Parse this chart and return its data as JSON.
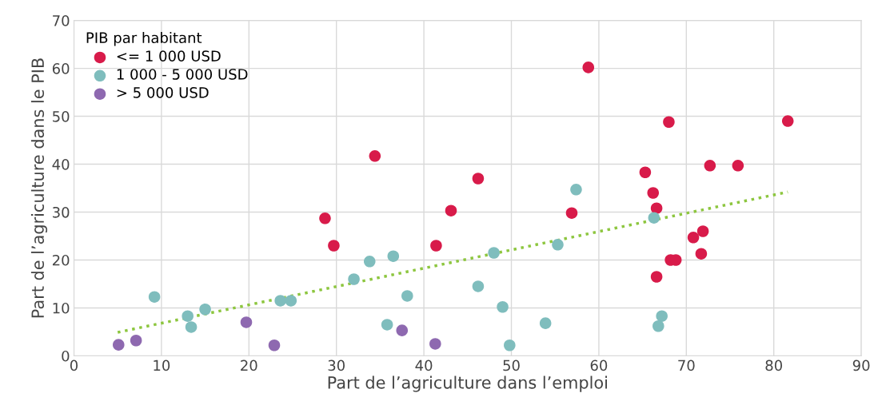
{
  "chart_data": {
    "type": "scatter",
    "xlabel": "Part de l’agriculture dans l’emploi",
    "ylabel": "Part de l’agriculture dans le PIB",
    "legend_title": "PIB par habitant",
    "legend": "top left",
    "grid": true,
    "marker": "circle",
    "xlim": [
      0,
      90
    ],
    "xticks": [
      0,
      10,
      20,
      30,
      40,
      50,
      60,
      70,
      80,
      90
    ],
    "ylim": [
      0,
      70
    ],
    "yticks": [
      0,
      10,
      20,
      30,
      40,
      50,
      60,
      70
    ],
    "series": [
      {
        "name": "<= 1 000 USD",
        "color": "#d81b4a",
        "x": [
          28.7,
          29.7,
          34.4,
          43.1,
          41.4,
          46.2,
          58.8,
          56.9,
          65.3,
          66.2,
          66.6,
          66.6,
          68.0,
          68.2,
          68.8,
          70.8,
          71.9,
          71.7,
          72.7,
          75.9,
          81.6
        ],
        "values": [
          28.7,
          23.0,
          41.7,
          30.3,
          23.0,
          37.0,
          60.2,
          29.8,
          38.3,
          34.0,
          30.8,
          16.5,
          48.8,
          20.0,
          20.0,
          24.7,
          26.0,
          21.3,
          39.7,
          39.7,
          49.0
        ]
      },
      {
        "name": "1 000 - 5 000 USD",
        "color": "#7fbdbd",
        "x": [
          9.2,
          13.0,
          13.4,
          15.0,
          23.6,
          24.8,
          32.0,
          33.8,
          36.5,
          35.8,
          38.1,
          46.2,
          48.0,
          49.0,
          49.8,
          53.9,
          55.3,
          57.4,
          66.3,
          67.2,
          66.8
        ],
        "values": [
          12.3,
          8.3,
          6.0,
          9.7,
          11.5,
          11.5,
          16.0,
          19.7,
          20.8,
          6.5,
          12.5,
          14.5,
          21.5,
          10.2,
          2.2,
          6.8,
          23.2,
          34.7,
          28.8,
          8.3,
          6.2
        ]
      },
      {
        "name": "> 5 000 USD",
        "color": "#8e69b0",
        "x": [
          5.1,
          7.1,
          19.7,
          22.9,
          37.5,
          41.3
        ],
        "values": [
          2.3,
          3.2,
          7.0,
          2.2,
          5.3,
          2.5
        ]
      },
      {
        "type": "line",
        "color": "#8dc63f",
        "line_style": "dotted",
        "marker": "none",
        "x": [
          5.0,
          81.6
        ],
        "values": [
          4.9,
          34.2
        ]
      }
    ]
  }
}
